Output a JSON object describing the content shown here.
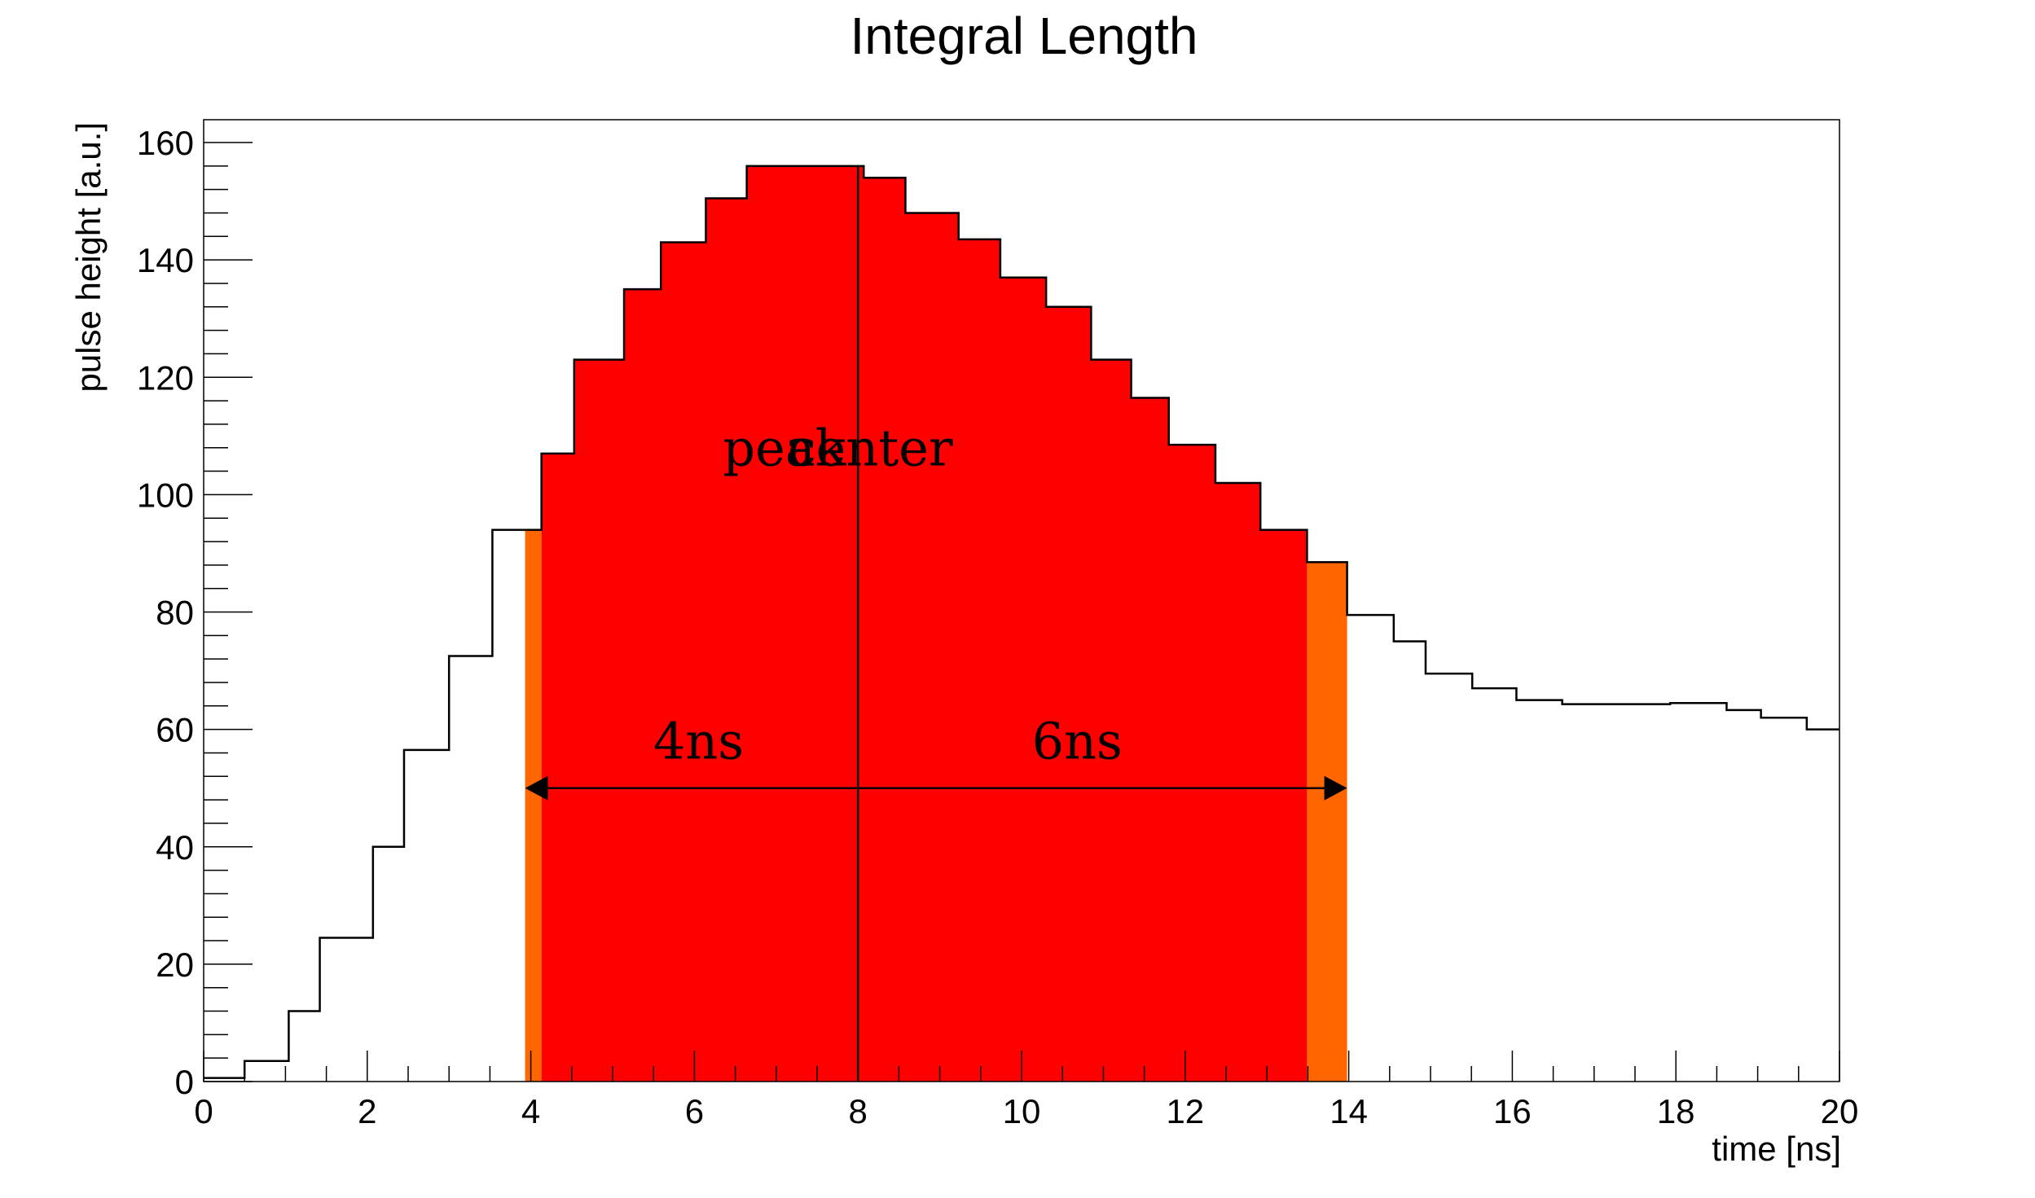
{
  "chart_data": {
    "type": "histogram",
    "title": "Integral Length",
    "xlabel": "time [ns]",
    "ylabel": "pulse height [a.u.]",
    "xlim": [
      0,
      20
    ],
    "ylim": [
      0,
      160
    ],
    "x_ticks": [
      "0",
      "2",
      "4",
      "6",
      "8",
      "10",
      "12",
      "14",
      "16",
      "18",
      "20"
    ],
    "y_ticks": [
      "0",
      "20",
      "40",
      "60",
      "80",
      "100",
      "120",
      "140",
      "160"
    ],
    "bin_edges": [
      0,
      0.5,
      1.04,
      1.42,
      2.07,
      2.45,
      3.0,
      3.53,
      4.13,
      4.53,
      5.14,
      5.59,
      6.14,
      6.64,
      7.33,
      8.07,
      8.58,
      9.23,
      9.74,
      10.3,
      10.85,
      11.34,
      11.8,
      12.37,
      12.92,
      13.49,
      13.98,
      14.55,
      14.94,
      15.51,
      16.05,
      16.61,
      17.2,
      17.93,
      18.62,
      19.04,
      19.6,
      20.0
    ],
    "bin_values": [
      0.6,
      3.5,
      12,
      24.5,
      40,
      56.5,
      72.5,
      94,
      107,
      123,
      135,
      143,
      150.5,
      156,
      156,
      154,
      148,
      143.5,
      137,
      132,
      123,
      116.5,
      108.5,
      102,
      94,
      88.5,
      79.5,
      75,
      69.5,
      67,
      65,
      64.3,
      64.3,
      64.5,
      63.3,
      62,
      60
    ],
    "regions": [
      {
        "name": "integral",
        "x_range": [
          4.13,
          13.49
        ],
        "color": "#ff0000"
      },
      {
        "name": "edge-left",
        "x_range": [
          3.93,
          4.13
        ],
        "color": "#ff6600"
      },
      {
        "name": "edge-right",
        "x_range": [
          13.49,
          13.98
        ],
        "color": "#ff6600"
      }
    ],
    "peak_line": {
      "x": 8.0,
      "y_top": 156
    },
    "arrow": {
      "x_start": 3.93,
      "x_end": 13.98,
      "y": 50
    },
    "annotations": [
      {
        "text": "peak",
        "x": 7.1,
        "y": 105
      },
      {
        "text": "center",
        "x": 8.15,
        "y": 105
      },
      {
        "text": "4ns",
        "x": 6.05,
        "y": 55
      },
      {
        "text": "6ns",
        "x": 10.68,
        "y": 55
      }
    ],
    "line_color": "#000000",
    "grid": false,
    "legend": "none"
  }
}
